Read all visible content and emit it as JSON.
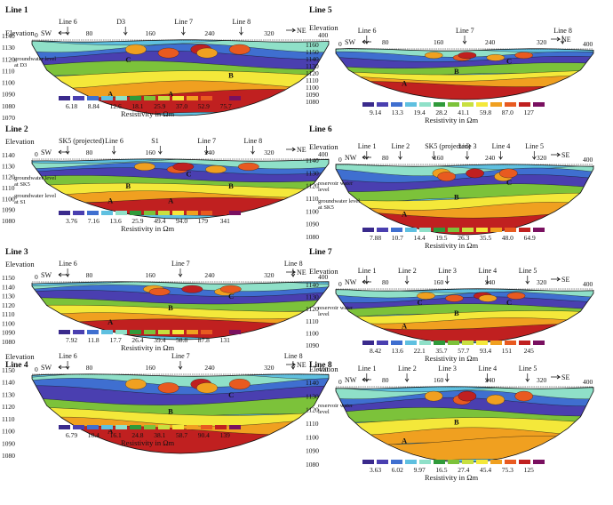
{
  "common": {
    "elevation_label": "Elevation",
    "resistivity_label": "Resistivity in Ωm",
    "zero_label": "0",
    "end_label": "400"
  },
  "panels": [
    {
      "title": "Line 1",
      "left_dir": "SW",
      "right_dir": "NE",
      "elev_ticks": [
        "1140",
        "1130",
        "1120",
        "1110",
        "1100",
        "1090",
        "1080",
        "1070"
      ],
      "dist_ticks": [
        "80",
        "160",
        "240",
        "320"
      ],
      "markers": [
        "Line 6",
        "D3",
        "Line 7",
        "Line 8"
      ],
      "annotations": [
        "groundwater level at D3"
      ],
      "zones": [
        "A",
        "A",
        "B",
        "C"
      ],
      "legend_values": [
        "6.18",
        "8.84",
        "12.6",
        "18.1",
        "25.9",
        "37.0",
        "52.9",
        "75.7"
      ]
    },
    {
      "title": "Line 2",
      "left_dir": "SW",
      "right_dir": "NE",
      "elev_ticks": [
        "1140",
        "1130",
        "1120",
        "1110",
        "1100",
        "1090",
        "1080"
      ],
      "dist_ticks": [
        "80",
        "160",
        "240",
        "320"
      ],
      "markers": [
        "SK5 (projected)",
        "Line 6",
        "S1",
        "Line 7",
        "Line 8"
      ],
      "annotations": [
        "groundwater level at SK5",
        "groundwater level at S1"
      ],
      "zones": [
        "A",
        "A",
        "B",
        "B",
        "C"
      ],
      "legend_values": [
        "3.76",
        "7.16",
        "13.6",
        "25.9",
        "49.4",
        "94.0",
        "179",
        "341"
      ]
    },
    {
      "title": "Line 3",
      "left_dir": "SW",
      "right_dir": "NE",
      "elev_ticks": [
        "1150",
        "1140",
        "1130",
        "1120",
        "1110",
        "1100",
        "1090",
        "1080"
      ],
      "dist_ticks": [
        "80",
        "160",
        "240",
        "320"
      ],
      "markers": [
        "Line 6",
        "Line 7",
        "Line 8"
      ],
      "annotations": [],
      "zones": [
        "A",
        "B",
        "C"
      ],
      "legend_values": [
        "7.92",
        "11.8",
        "17.7",
        "26.4",
        "39.4",
        "58.8",
        "87.8",
        "131"
      ]
    },
    {
      "title": "Line 4",
      "left_dir": "SW",
      "right_dir": "NE",
      "elev_ticks": [
        "1150",
        "1140",
        "1130",
        "1120",
        "1110",
        "1100",
        "1090",
        "1080"
      ],
      "dist_ticks": [
        "80",
        "160",
        "240",
        "320"
      ],
      "markers": [
        "Line 6",
        "Line 7",
        "Line 8"
      ],
      "annotations": [],
      "zones": [
        "A",
        "B",
        "C"
      ],
      "legend_values": [
        "6.79",
        "10.4",
        "16.1",
        "24.8",
        "38.1",
        "58.7",
        "90.4",
        "139"
      ]
    },
    {
      "title": "Line 5",
      "left_dir": "SW",
      "right_dir": "NE",
      "elev_ticks": [
        "1160",
        "1150",
        "1140",
        "1130",
        "1120",
        "1110",
        "1100",
        "1090",
        "1080"
      ],
      "dist_ticks": [
        "80",
        "160",
        "240",
        "320"
      ],
      "markers": [
        "Line 6",
        "Line 7",
        "Line 8"
      ],
      "annotations": [],
      "zones": [
        "A",
        "B",
        "C"
      ],
      "legend_values": [
        "9.14",
        "13.3",
        "19.4",
        "28.2",
        "41.1",
        "59.8",
        "87.0",
        "127"
      ]
    },
    {
      "title": "Line 6",
      "left_dir": "NW",
      "right_dir": "SE",
      "elev_ticks": [
        "1140",
        "1130",
        "1120",
        "1110",
        "1100",
        "1090",
        "1080"
      ],
      "dist_ticks": [
        "80",
        "160",
        "240",
        "320"
      ],
      "markers": [
        "Line 1",
        "Line 2",
        "SK5 (projected)",
        "Line 3",
        "Line 4",
        "Line 5"
      ],
      "annotations": [
        "reservoir water level",
        "groundwater level at SK5"
      ],
      "zones": [
        "A",
        "B",
        "C"
      ],
      "legend_values": [
        "7.88",
        "10.7",
        "14.4",
        "19.5",
        "26.3",
        "35.5",
        "48.0",
        "64.9"
      ]
    },
    {
      "title": "Line 7",
      "left_dir": "NW",
      "right_dir": "SE",
      "elev_ticks": [
        "1140",
        "1130",
        "1120",
        "1110",
        "1100",
        "1090"
      ],
      "dist_ticks": [
        "80",
        "160",
        "240",
        "320"
      ],
      "markers": [
        "Line 1",
        "Line 2",
        "Line 3",
        "Line 4",
        "Line 5"
      ],
      "annotations": [
        "reservoir water level"
      ],
      "zones": [
        "A",
        "B",
        "C",
        "C"
      ],
      "legend_values": [
        "8.42",
        "13.6",
        "22.1",
        "35.7",
        "57.7",
        "93.4",
        "151",
        "245"
      ]
    },
    {
      "title": "Line 8",
      "left_dir": "NW",
      "right_dir": "SE",
      "elev_ticks": [
        "1140",
        "1130",
        "1120",
        "1110",
        "1100",
        "1090",
        "1080"
      ],
      "dist_ticks": [
        "80",
        "160",
        "240",
        "320"
      ],
      "markers": [
        "Line 1",
        "Line 2",
        "Line 3",
        "Line 4",
        "Line 5"
      ],
      "annotations": [
        "reservoir water level"
      ],
      "zones": [
        "A",
        "B"
      ],
      "legend_values": [
        "3.63",
        "6.02",
        "9.97",
        "16.5",
        "27.4",
        "45.4",
        "75.3",
        "125"
      ]
    }
  ],
  "colors": {
    "scale": [
      "#3a2a8c",
      "#4a3fb0",
      "#3f6fd0",
      "#5fc0e0",
      "#8fe0c8",
      "#2f9a3a",
      "#7cc23a",
      "#c8e040",
      "#f4e83a",
      "#f0a020",
      "#e85a20",
      "#c02020",
      "#7a1060"
    ]
  }
}
